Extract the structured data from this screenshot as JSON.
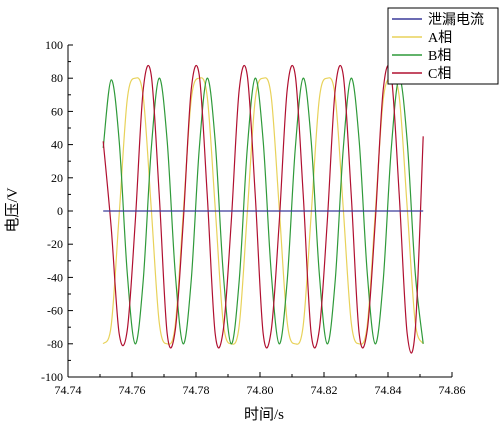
{
  "chart_data": {
    "type": "line",
    "xlabel": "时间/s",
    "ylabel": "电压/V",
    "xlim": [
      74.74,
      74.86
    ],
    "ylim": [
      -100,
      100
    ],
    "x_ticks": [
      "74.74",
      "74.76",
      "74.78",
      "74.80",
      "74.82",
      "74.84",
      "74.86"
    ],
    "y_ticks": [
      "100",
      "80",
      "60",
      "40",
      "20",
      "0",
      "-20",
      "-40",
      "-60",
      "-80",
      "-100"
    ],
    "x_tick_values": [
      74.74,
      74.76,
      74.78,
      74.8,
      74.82,
      74.84,
      74.86
    ],
    "y_tick_values": [
      100,
      80,
      60,
      40,
      20,
      0,
      -20,
      -40,
      -60,
      -80,
      -100
    ],
    "legend_position": "top-right",
    "series": [
      {
        "name": "泄漏电流",
        "color": "#3a3a9a",
        "x": [
          74.751,
          74.851
        ],
        "values": [
          0,
          0
        ]
      },
      {
        "name": "A相",
        "color": "#e8d25a",
        "x": [
          74.751,
          74.7535,
          74.756,
          74.7585,
          74.761,
          74.7635,
          74.766,
          74.7685,
          74.771,
          74.7735,
          74.776,
          74.7785,
          74.781,
          74.7835,
          74.786,
          74.7885,
          74.791,
          74.7935,
          74.796,
          74.7985,
          74.801,
          74.8035,
          74.806,
          74.8085,
          74.811,
          74.8135,
          74.816,
          74.8185,
          74.821,
          74.8235,
          74.826,
          74.8285,
          74.831,
          74.8335,
          74.836,
          74.8385,
          74.841,
          74.8435,
          74.846,
          74.8485,
          74.851
        ],
        "values": [
          -80,
          -69,
          -2,
          67,
          80,
          69,
          2,
          -67,
          -80,
          -69,
          -2,
          67,
          80,
          69,
          2,
          -67,
          -80,
          -69,
          -2,
          67,
          80,
          69,
          2,
          -67,
          -80,
          -69,
          -2,
          67,
          80,
          69,
          2,
          -67,
          -80,
          -69,
          -2,
          67,
          80,
          69,
          2,
          -67,
          -80
        ]
      },
      {
        "name": "B相",
        "color": "#2f9a3a",
        "x": [
          74.751,
          74.7535,
          74.756,
          74.7585,
          74.761,
          74.7635,
          74.766,
          74.7685,
          74.771,
          74.7735,
          74.776,
          74.7785,
          74.781,
          74.7835,
          74.786,
          74.7885,
          74.791,
          74.7935,
          74.796,
          74.7985,
          74.801,
          74.8035,
          74.806,
          74.8085,
          74.811,
          74.8135,
          74.816,
          74.8185,
          74.821,
          74.8235,
          74.826,
          74.8285,
          74.831,
          74.8335,
          74.836,
          74.8385,
          74.841,
          74.8435,
          74.846,
          74.8485,
          74.851
        ],
        "values": [
          38,
          79,
          42,
          -37,
          -80,
          -42,
          37,
          80,
          42,
          -37,
          -80,
          -42,
          37,
          80,
          42,
          -37,
          -80,
          -42,
          37,
          80,
          42,
          -37,
          -80,
          -42,
          37,
          80,
          42,
          -37,
          -80,
          -42,
          37,
          80,
          42,
          -37,
          -80,
          -42,
          37,
          80,
          42,
          -37,
          -80
        ]
      },
      {
        "name": "C相",
        "color": "#b01030",
        "x": [
          74.751,
          74.7535,
          74.756,
          74.7585,
          74.761,
          74.7635,
          74.766,
          74.7685,
          74.771,
          74.7735,
          74.776,
          74.7785,
          74.781,
          74.7835,
          74.786,
          74.7885,
          74.791,
          74.7935,
          74.796,
          74.7985,
          74.801,
          74.8035,
          74.806,
          74.8085,
          74.811,
          74.8135,
          74.816,
          74.8185,
          74.821,
          74.8235,
          74.826,
          74.8285,
          74.831,
          74.8335,
          74.836,
          74.8385,
          74.841,
          74.8435,
          74.846,
          74.8485,
          74.851
        ],
        "values": [
          42,
          -10,
          -74,
          -72,
          -7,
          73,
          82,
          10,
          -74,
          -72,
          -7,
          73,
          82,
          10,
          -74,
          -72,
          -7,
          73,
          82,
          10,
          -74,
          -72,
          -7,
          73,
          82,
          10,
          -74,
          -72,
          -7,
          73,
          82,
          10,
          -74,
          -72,
          -7,
          73,
          82,
          10,
          -74,
          -72,
          45
        ]
      }
    ]
  }
}
